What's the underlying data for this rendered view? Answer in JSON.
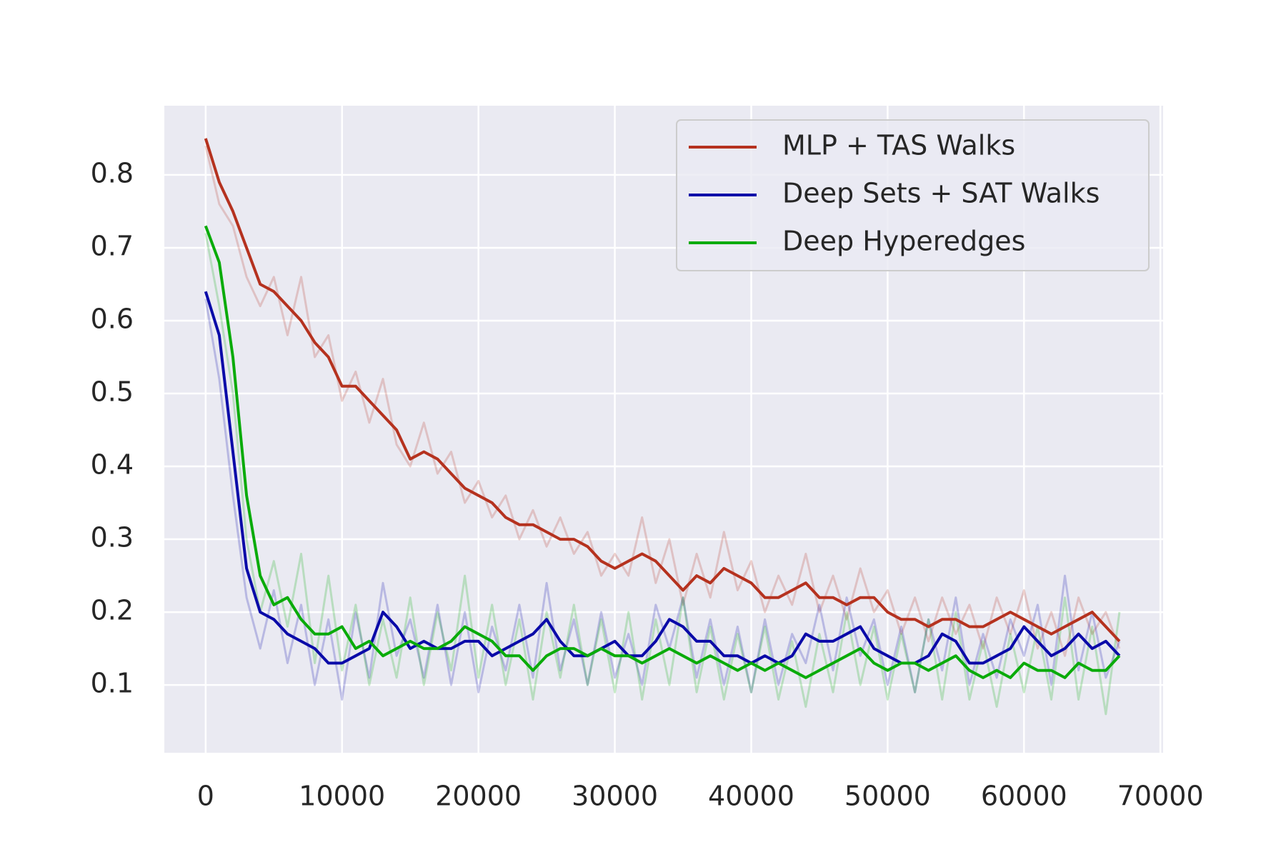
{
  "chart_data": {
    "type": "line",
    "x": [
      0,
      1000,
      2000,
      3000,
      4000,
      5000,
      6000,
      7000,
      8000,
      9000,
      10000,
      11000,
      12000,
      13000,
      14000,
      15000,
      16000,
      17000,
      18000,
      19000,
      20000,
      21000,
      22000,
      23000,
      24000,
      25000,
      26000,
      27000,
      28000,
      29000,
      30000,
      31000,
      32000,
      33000,
      34000,
      35000,
      36000,
      37000,
      38000,
      39000,
      40000,
      41000,
      42000,
      43000,
      44000,
      45000,
      46000,
      47000,
      48000,
      49000,
      50000,
      51000,
      52000,
      53000,
      54000,
      55000,
      56000,
      57000,
      58000,
      59000,
      60000,
      61000,
      62000,
      63000,
      64000,
      65000,
      66000,
      67000
    ],
    "series": [
      {
        "name": "MLP + TAS Walks",
        "color": "#b5321f",
        "values": [
          0.85,
          0.79,
          0.75,
          0.7,
          0.65,
          0.64,
          0.62,
          0.6,
          0.57,
          0.55,
          0.51,
          0.51,
          0.49,
          0.47,
          0.45,
          0.41,
          0.42,
          0.41,
          0.39,
          0.37,
          0.36,
          0.35,
          0.33,
          0.32,
          0.32,
          0.31,
          0.3,
          0.3,
          0.29,
          0.27,
          0.26,
          0.27,
          0.28,
          0.27,
          0.25,
          0.23,
          0.25,
          0.24,
          0.26,
          0.25,
          0.24,
          0.22,
          0.22,
          0.23,
          0.24,
          0.22,
          0.22,
          0.21,
          0.22,
          0.22,
          0.2,
          0.19,
          0.19,
          0.18,
          0.19,
          0.19,
          0.18,
          0.18,
          0.19,
          0.2,
          0.19,
          0.18,
          0.17,
          0.18,
          0.19,
          0.2,
          0.18,
          0.16
        ],
        "raw_values": [
          0.84,
          0.76,
          0.73,
          0.66,
          0.62,
          0.66,
          0.58,
          0.66,
          0.55,
          0.58,
          0.49,
          0.53,
          0.46,
          0.52,
          0.43,
          0.4,
          0.46,
          0.39,
          0.42,
          0.35,
          0.38,
          0.33,
          0.36,
          0.3,
          0.34,
          0.29,
          0.33,
          0.28,
          0.31,
          0.25,
          0.28,
          0.25,
          0.33,
          0.24,
          0.3,
          0.21,
          0.28,
          0.22,
          0.31,
          0.23,
          0.27,
          0.2,
          0.25,
          0.21,
          0.28,
          0.2,
          0.25,
          0.19,
          0.26,
          0.2,
          0.23,
          0.17,
          0.22,
          0.16,
          0.22,
          0.17,
          0.21,
          0.15,
          0.22,
          0.17,
          0.23,
          0.15,
          0.2,
          0.14,
          0.22,
          0.17,
          0.2,
          0.15
        ]
      },
      {
        "name": "Deep Sets + SAT Walks",
        "color": "#0a0aa8",
        "values": [
          0.64,
          0.58,
          0.42,
          0.26,
          0.2,
          0.19,
          0.17,
          0.16,
          0.15,
          0.13,
          0.13,
          0.14,
          0.15,
          0.2,
          0.18,
          0.15,
          0.16,
          0.15,
          0.15,
          0.16,
          0.16,
          0.14,
          0.15,
          0.16,
          0.17,
          0.19,
          0.16,
          0.14,
          0.14,
          0.15,
          0.16,
          0.14,
          0.14,
          0.16,
          0.19,
          0.18,
          0.16,
          0.16,
          0.14,
          0.14,
          0.13,
          0.14,
          0.13,
          0.14,
          0.17,
          0.16,
          0.16,
          0.17,
          0.18,
          0.15,
          0.14,
          0.13,
          0.13,
          0.14,
          0.17,
          0.16,
          0.13,
          0.13,
          0.14,
          0.15,
          0.18,
          0.16,
          0.14,
          0.15,
          0.17,
          0.15,
          0.16,
          0.14
        ],
        "raw_values": [
          0.63,
          0.52,
          0.36,
          0.22,
          0.15,
          0.23,
          0.13,
          0.21,
          0.1,
          0.19,
          0.08,
          0.2,
          0.11,
          0.24,
          0.14,
          0.19,
          0.11,
          0.21,
          0.1,
          0.2,
          0.09,
          0.18,
          0.12,
          0.21,
          0.11,
          0.24,
          0.12,
          0.19,
          0.1,
          0.2,
          0.11,
          0.17,
          0.1,
          0.21,
          0.15,
          0.22,
          0.11,
          0.19,
          0.1,
          0.18,
          0.09,
          0.19,
          0.1,
          0.17,
          0.13,
          0.21,
          0.12,
          0.22,
          0.14,
          0.19,
          0.1,
          0.18,
          0.09,
          0.19,
          0.12,
          0.22,
          0.1,
          0.17,
          0.11,
          0.19,
          0.14,
          0.21,
          0.1,
          0.25,
          0.12,
          0.2,
          0.11,
          0.16
        ]
      },
      {
        "name": "Deep Hyperedges",
        "color": "#0aab0a",
        "values": [
          0.73,
          0.68,
          0.55,
          0.36,
          0.25,
          0.21,
          0.22,
          0.19,
          0.17,
          0.17,
          0.18,
          0.15,
          0.16,
          0.14,
          0.15,
          0.16,
          0.15,
          0.15,
          0.16,
          0.18,
          0.17,
          0.16,
          0.14,
          0.14,
          0.12,
          0.14,
          0.15,
          0.15,
          0.14,
          0.15,
          0.14,
          0.14,
          0.13,
          0.14,
          0.15,
          0.14,
          0.13,
          0.14,
          0.13,
          0.12,
          0.13,
          0.12,
          0.13,
          0.12,
          0.11,
          0.12,
          0.13,
          0.14,
          0.15,
          0.13,
          0.12,
          0.13,
          0.13,
          0.12,
          0.13,
          0.14,
          0.12,
          0.11,
          0.12,
          0.11,
          0.13,
          0.12,
          0.12,
          0.11,
          0.13,
          0.12,
          0.12,
          0.14
        ],
        "raw_values": [
          0.72,
          0.62,
          0.5,
          0.3,
          0.2,
          0.27,
          0.18,
          0.28,
          0.13,
          0.25,
          0.12,
          0.21,
          0.1,
          0.19,
          0.11,
          0.22,
          0.1,
          0.2,
          0.12,
          0.25,
          0.11,
          0.21,
          0.1,
          0.19,
          0.08,
          0.2,
          0.11,
          0.21,
          0.1,
          0.19,
          0.09,
          0.2,
          0.08,
          0.19,
          0.1,
          0.22,
          0.09,
          0.18,
          0.08,
          0.17,
          0.09,
          0.18,
          0.08,
          0.16,
          0.07,
          0.17,
          0.09,
          0.2,
          0.1,
          0.18,
          0.08,
          0.17,
          0.09,
          0.19,
          0.08,
          0.2,
          0.08,
          0.16,
          0.07,
          0.17,
          0.09,
          0.18,
          0.08,
          0.22,
          0.08,
          0.18,
          0.06,
          0.2
        ]
      }
    ],
    "xlim": [
      -3030,
      70200
    ],
    "ylim": [
      0.007,
      0.895
    ],
    "xticks": [
      0,
      10000,
      20000,
      30000,
      40000,
      50000,
      60000,
      70000
    ],
    "yticks": [
      0.1,
      0.2,
      0.3,
      0.4,
      0.5,
      0.6,
      0.7,
      0.8
    ],
    "grid": true,
    "legend": "upper right"
  }
}
